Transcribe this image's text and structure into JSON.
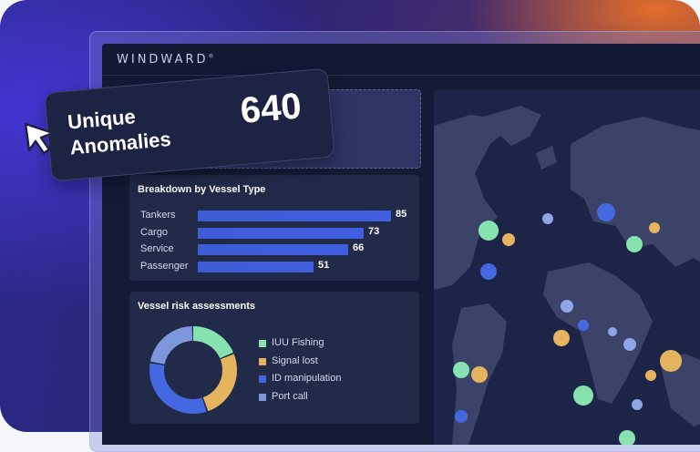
{
  "app": {
    "brand": "WINDWARD",
    "brand_mark": "®"
  },
  "callout": {
    "label_line1": "Unique",
    "label_line2": "Anomalies",
    "value": "640"
  },
  "breakdown": {
    "title": "Breakdown by Vessel Type",
    "max": 85,
    "rows": [
      {
        "label": "Tankers",
        "value": 85
      },
      {
        "label": "Cargo",
        "value": 73
      },
      {
        "label": "Service",
        "value": 66
      },
      {
        "label": "Passenger",
        "value": 51
      }
    ]
  },
  "risk": {
    "title": "Vessel risk assessments",
    "segments": [
      {
        "label": "IUU Fishing",
        "color": "#86e3b0",
        "share": 0.19
      },
      {
        "label": "Signal lost",
        "color": "#e6b45e",
        "share": 0.26
      },
      {
        "label": "ID manipulation",
        "color": "#4468e0",
        "share": 0.33
      },
      {
        "label": "Port call",
        "color": "#7d97dc",
        "share": 0.22
      }
    ]
  },
  "colors": {
    "accent_blue": "#4468e0",
    "map_dot_green": "#86e3b0",
    "map_dot_orange": "#e6b45e",
    "map_dot_light_blue": "#8ea6e8",
    "map_land": "#3b4368"
  }
}
